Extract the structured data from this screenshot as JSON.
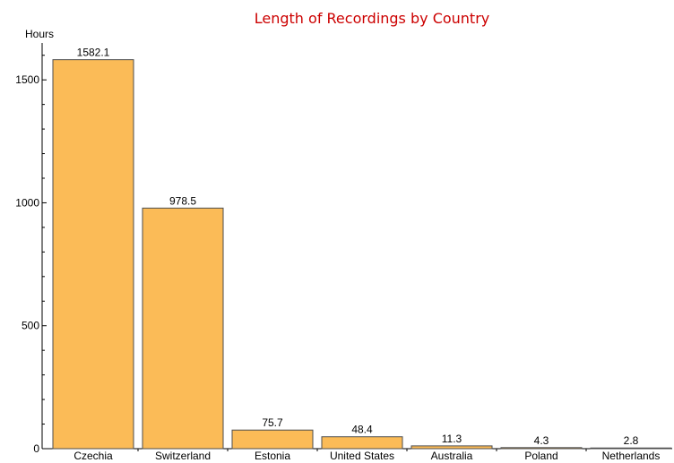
{
  "chart_data": {
    "type": "bar",
    "title": "Length of Recordings by Country",
    "ylabel": "Hours",
    "xlabel": "",
    "categories": [
      "Czechia",
      "Switzerland",
      "Estonia",
      "United States",
      "Australia",
      "Poland",
      "Netherlands"
    ],
    "values": [
      1582.1,
      978.5,
      75.7,
      48.4,
      11.3,
      4.3,
      2.8
    ],
    "data_labels": [
      "1582.1",
      "978.5",
      "75.7",
      "48.4",
      "11.3",
      "4.3",
      "2.8"
    ],
    "ylim": [
      0,
      1650
    ],
    "yticks": [
      0,
      500,
      1000,
      1500
    ],
    "ytick_labels": [
      "0",
      "500",
      "1000",
      "1500"
    ],
    "grid": false,
    "legend": "none"
  },
  "colors": {
    "bar_fill": "#FBBB57",
    "bar_stroke": "#4d4d4d",
    "title": "#CC0000",
    "axis": "#000000"
  }
}
